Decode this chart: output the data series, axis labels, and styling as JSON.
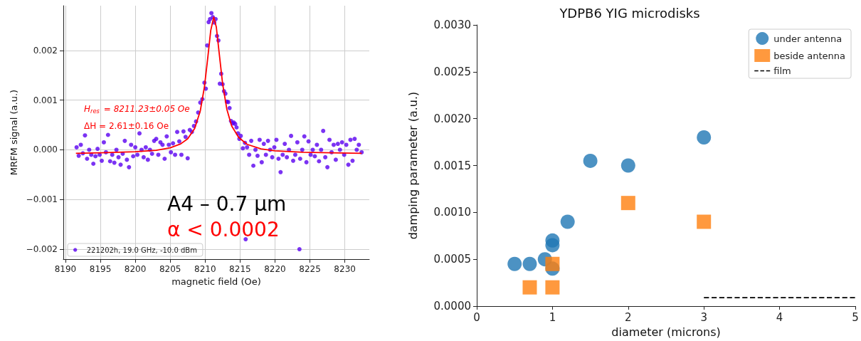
{
  "chart_data": [
    {
      "type": "scatter",
      "xlabel": "magnetic field (Oe)",
      "ylabel": "MRFM signal (a.u.)",
      "xlim": [
        8189.7,
        8233.5
      ],
      "xticks": [
        8190,
        8195,
        8200,
        8205,
        8210,
        8215,
        8220,
        8225,
        8230
      ],
      "ylim": [
        -0.0022,
        0.0029
      ],
      "yticks": [
        {
          "value": -0.002,
          "label": "−0.002"
        },
        {
          "value": -0.001,
          "label": "−0.001"
        },
        {
          "value": 0,
          "label": "0.000"
        },
        {
          "value": 0.001,
          "label": "0.001"
        },
        {
          "value": 0.002,
          "label": "0.002"
        }
      ],
      "grid": true,
      "legend": "bottom left",
      "annotations": [
        "H$_{res}$ = 8211.23±0.05 Oe",
        "ΔH = 2.61±0.16 Oe",
        "A4 – 0.7 µm",
        "α < 0.0002"
      ],
      "series": [
        {
          "name": "221202h, 19.0 GHz, -10.0 dBm",
          "color": "#5a00f0",
          "marker": "circle",
          "x": [
            8191.6,
            8191.9,
            8192.2,
            8192.5,
            8192.8,
            8193.1,
            8193.4,
            8193.7,
            8194.0,
            8194.3,
            8194.6,
            8194.9,
            8195.2,
            8195.5,
            8195.8,
            8196.1,
            8196.4,
            8196.7,
            8197.0,
            8197.3,
            8197.6,
            8197.9,
            8198.2,
            8198.5,
            8198.8,
            8199.1,
            8199.4,
            8199.7,
            8200.0,
            8200.3,
            8200.6,
            8200.9,
            8201.2,
            8201.5,
            8201.8,
            8202.1,
            8202.4,
            8202.7,
            8203.0,
            8203.3,
            8203.6,
            8203.9,
            8204.2,
            8204.5,
            8204.8,
            8205.1,
            8205.4,
            8205.7,
            8206.0,
            8206.3,
            8206.6,
            8206.9,
            8207.2,
            8207.5,
            8207.8,
            8208.1,
            8208.4,
            8208.7,
            8209.0,
            8209.3,
            8209.6,
            8209.9,
            8210.1,
            8210.3,
            8210.5,
            8210.7,
            8210.9,
            8211.1,
            8211.3,
            8211.5,
            8211.7,
            8211.9,
            8212.1,
            8212.3,
            8212.5,
            8212.7,
            8212.9,
            8213.1,
            8213.3,
            8213.5,
            8213.7,
            8213.9,
            8214.1,
            8214.3,
            8214.5,
            8214.7,
            8214.9,
            8215.1,
            8215.4,
            8215.7,
            8215.8,
            8216.0,
            8216.3,
            8216.6,
            8216.9,
            8217.2,
            8217.5,
            8217.8,
            8218.1,
            8218.4,
            8218.7,
            8219.0,
            8219.3,
            8219.6,
            8219.9,
            8220.2,
            8220.5,
            8220.8,
            8221.1,
            8221.4,
            8221.7,
            8222.0,
            8222.3,
            8222.6,
            8222.9,
            8223.2,
            8223.5,
            8223.6,
            8223.9,
            8224.2,
            8224.5,
            8224.8,
            8225.1,
            8225.4,
            8225.7,
            8226.0,
            8226.3,
            8226.6,
            8226.9,
            8227.2,
            8227.5,
            8227.8,
            8228.1,
            8228.4,
            8228.7,
            8229.0,
            8229.3,
            8229.6,
            8229.9,
            8230.2,
            8230.5,
            8230.8,
            8231.1,
            8231.4,
            8231.7,
            8232.0,
            8232.4
          ],
          "values": [
            5e-05,
            -0.00012,
            0.0001,
            -7e-05,
            0.00029,
            -0.00018,
            0,
            -0.0001,
            -0.00028,
            -0.00013,
            2e-05,
            -0.0001,
            -0.00022,
            0.00015,
            -5e-05,
            0.0003,
            -0.00023,
            -0.0001,
            -0.00026,
            0,
            -0.00015,
            -0.0003,
            -8e-05,
            0.00018,
            -0.0002,
            -0.00035,
            0.0001,
            -0.00013,
            5e-05,
            -0.0001,
            0.00033,
            0,
            -0.00015,
            5e-05,
            -0.0002,
            0,
            -8e-05,
            0.00018,
            0.00022,
            -0.0001,
            0.00015,
            0.0001,
            -0.00018,
            0.00027,
            0.0001,
            -5e-05,
            0.00013,
            -0.0001,
            0.00036,
            0.00017,
            -0.0001,
            0.00037,
            0.00026,
            -0.00017,
            0.0004,
            0.00036,
            0.00048,
            0.00057,
            0.00075,
            0.00095,
            0.00102,
            0.00135,
            0.00123,
            0.0021,
            0.00257,
            0.00263,
            0.00275,
            0.00267,
            0.00256,
            0.00263,
            0.00229,
            0.0022,
            0.00133,
            0.00153,
            0.00132,
            0.00118,
            0.00113,
            0.00097,
            0.00096,
            0.00084,
            0.00058,
            0.00053,
            0.00055,
            0.00052,
            0.00045,
            0.00033,
            0.00022,
            0.00028,
            3e-05,
            0.00014,
            -0.0018,
            5e-05,
            -0.0001,
            0.00018,
            -0.00032,
            0,
            -0.00012,
            0.0002,
            -0.00025,
            0.00012,
            -0.0001,
            0.00018,
            0,
            -0.00015,
            5e-05,
            0.0002,
            -0.00018,
            -0.00045,
            -0.0001,
            0.00012,
            -0.00015,
            0,
            0.00028,
            -0.00022,
            -0.0001,
            0.00015,
            -0.002,
            -0.00018,
            0,
            0.00027,
            -0.00025,
            0.00017,
            -0.0001,
            0,
            -0.00013,
            0.0001,
            -0.00023,
            0,
            0.00038,
            -0.00015,
            -0.00035,
            0.0002,
            -5e-05,
            0.0001,
            -0.0002,
            0.00012,
            0,
            0.00015,
            -0.0001,
            0.0001,
            -0.0003,
            0.0002,
            -0.00022,
            0.00022,
            0,
            0.0001,
            -5e-05
          ]
        },
        {
          "type": "line",
          "color": "#ff0000",
          "marker": "none",
          "x": [
            8191.5,
            8195,
            8200,
            8203,
            8205,
            8206.5,
            8207.5,
            8208.5,
            8209.3,
            8209.9,
            8210.4,
            8210.8,
            8211.23,
            8211.6,
            8212,
            8212.5,
            8213.1,
            8213.8,
            8214.8,
            8216,
            8218,
            8220,
            8224,
            8228,
            8232.4
          ],
          "values": [
            -7e-05,
            -6e-05,
            -4e-05,
            -1e-05,
            4e-05,
            0.00012,
            0.00022,
            0.00043,
            0.00078,
            0.00127,
            0.00188,
            0.0024,
            0.00267,
            0.00247,
            0.00196,
            0.00133,
            0.00082,
            0.00048,
            0.00025,
            0.00011,
            2e-05,
            -2e-05,
            -5e-05,
            -6e-05,
            -7e-05
          ]
        }
      ]
    },
    {
      "type": "scatter",
      "title": "YDPB6 YIG microdisks",
      "xlabel": "diameter (microns)",
      "ylabel": "damping parameter (a.u.)",
      "xlim": [
        0,
        5
      ],
      "xticks": [
        0,
        1,
        2,
        3,
        4,
        5
      ],
      "ylim": [
        0,
        0.003
      ],
      "yticks": [
        {
          "value": 0,
          "label": "0.0000"
        },
        {
          "value": 0.0005,
          "label": "0.0005"
        },
        {
          "value": 0.001,
          "label": "0.0010"
        },
        {
          "value": 0.0015,
          "label": "0.0015"
        },
        {
          "value": 0.002,
          "label": "0.0020"
        },
        {
          "value": 0.0025,
          "label": "0.0025"
        },
        {
          "value": 0.003,
          "label": "0.0030"
        }
      ],
      "legend": "top right",
      "series": [
        {
          "name": "under antenna",
          "color": "#1f77b4",
          "marker": "circle",
          "x": [
            0.5,
            0.7,
            0.9,
            1,
            1,
            1,
            1.2,
            1.5,
            2,
            3
          ],
          "values": [
            0.00045,
            0.00045,
            0.0005,
            0.0007,
            0.00065,
            0.0004,
            0.0009,
            0.00155,
            0.0015,
            0.0018
          ]
        },
        {
          "name": "beside antenna",
          "color": "#ff7f0e",
          "marker": "square",
          "x": [
            0.7,
            1,
            1,
            2,
            3
          ],
          "values": [
            0.0002,
            0.0002,
            0.00045,
            0.0011,
            0.0009
          ]
        },
        {
          "name": "film",
          "type": "line",
          "color": "#000000",
          "marker": "none",
          "line_style": "dashed",
          "x": [
            3,
            5
          ],
          "values": [
            9e-05,
            9e-05
          ]
        }
      ]
    }
  ]
}
